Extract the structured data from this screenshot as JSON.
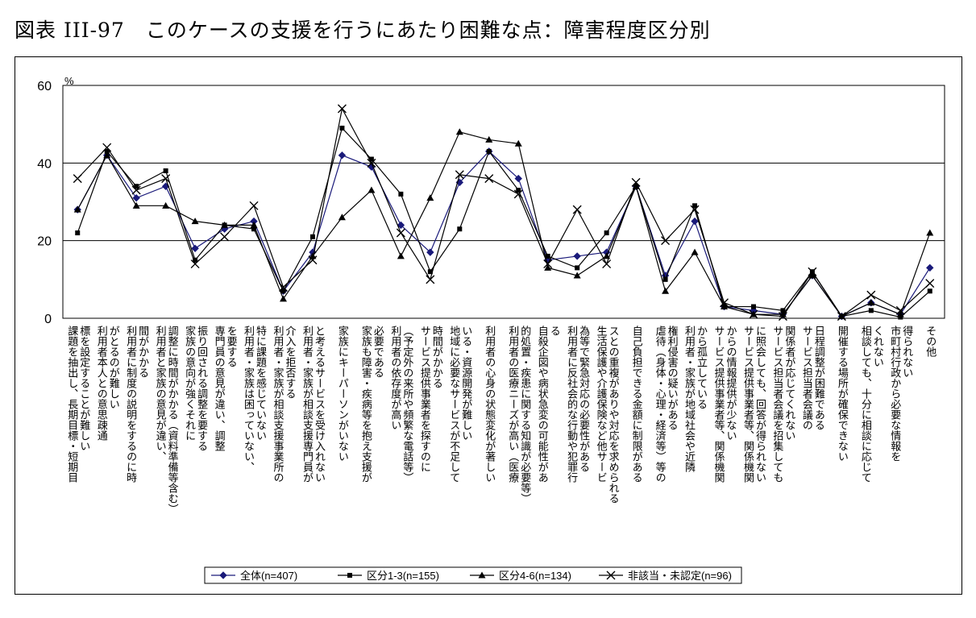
{
  "title": "図表 III-97　このケースの支援を行うにあたり困難な点：障害程度区分別",
  "chart_data": {
    "type": "line",
    "unit": "%",
    "ylim": [
      0,
      60
    ],
    "yticks": [
      0,
      20,
      40,
      60
    ],
    "grid": true,
    "legend_position": "bottom",
    "categories": [
      [
        "課題を抽出し、長期目標・短期目",
        "標を設定することが難しい"
      ],
      [
        "利用者本人との意思疎通",
        "がとるのが難しい"
      ],
      [
        "利用者に制度の説明をするのに時",
        "間がかかる"
      ],
      [
        "利用者と家族の意見が違い、",
        "調整に時間がかかる（資料準備等含む）"
      ],
      [
        "家族の意向が強くそれに",
        "振り回される調整を要する"
      ],
      [
        "専門員の意見が違い、調整",
        "を要する"
      ],
      [
        "利用者・家族は困っていない、",
        "特に課題を感じていない"
      ],
      [
        "利用者・家族が相談支援事業所の",
        "介入を拒否する"
      ],
      [
        "利用者・家族が相談支援専門員が",
        "と考えるサービスを受け入れない"
      ],
      [
        "家族にキーパーソンがいない"
      ],
      [
        "家族も障害・疾病等を抱え支援が",
        "必要である"
      ],
      [
        "利用者の依存度が高い",
        "（予定外の来所や頻繁な電話等）"
      ],
      [
        "サービス提供事業者を探すのに",
        "時間がかかる"
      ],
      [
        "地域に必要なサービスが不足して",
        "いる・資源開発が難しい"
      ],
      [
        "利用者の心身の状態変化が著しい"
      ],
      [
        "利用者の医療ニーズが高い（医療",
        "的処置・疾患に関する知識が必要等）"
      ],
      [
        "自殺企図や病状急変の可能性があ",
        "る"
      ],
      [
        "利用者に反社会的な行動や犯罪行",
        "為等で緊急対応の必要性がある"
      ],
      [
        "生活保護や介護保険など他サービ",
        "スとの重複がありや対応を求められる"
      ],
      [
        "自己負担できる金額に制限がある"
      ],
      [
        "虐待（身体・心理・経済等）等の",
        "権利侵害の疑いがある"
      ],
      [
        "利用者・家族が地域社会や近隣",
        "から孤立している"
      ],
      [
        "サービス提供事業者等、関係機関",
        "からの情報提供が少ない"
      ],
      [
        "サービス提供事業者等、関係機関",
        "に照会しても、回答が得られない"
      ],
      [
        "サービス担当者会議を招集しても",
        "関係者が応じてくれない"
      ],
      [
        "サービス担当者会議の",
        "日程調整が困難である"
      ],
      [
        "開催する場所が確保できない"
      ],
      [
        "相談しても、十分に相談に応じて",
        "くれない"
      ],
      [
        "市町村行政から必要な情報を",
        "得られない"
      ],
      [
        "その他"
      ]
    ],
    "series": [
      {
        "name": "全体(n=407)",
        "marker": "diamond",
        "color": "#1a1a7a",
        "values": [
          28,
          42,
          31,
          34,
          18,
          23,
          25,
          7,
          17,
          42,
          39,
          24,
          17,
          35,
          43,
          36,
          15,
          16,
          17,
          34,
          11,
          25,
          3,
          2,
          1,
          11,
          0.5,
          4,
          1,
          13
        ]
      },
      {
        "name": "区分1-3(n=155)",
        "marker": "square",
        "color": "#000000",
        "values": [
          22,
          43,
          34,
          38,
          15,
          24,
          23,
          7,
          21,
          49,
          41,
          32,
          12,
          23,
          43,
          33,
          16,
          13,
          22,
          34,
          10,
          29,
          3,
          3,
          2,
          12,
          0.5,
          2,
          0.3,
          7
        ]
      },
      {
        "name": "区分4-6(n=134)",
        "marker": "triangle",
        "color": "#000000",
        "values": [
          28,
          42,
          29,
          29,
          25,
          24,
          24,
          5,
          16,
          26,
          33,
          16,
          31,
          48,
          46,
          45,
          13,
          11,
          16,
          34,
          7,
          17,
          3,
          1,
          1,
          11,
          0.5,
          4,
          1,
          22
        ]
      },
      {
        "name": "非該当・未認定(n=96)",
        "marker": "x",
        "color": "#000000",
        "values": [
          36,
          44,
          33,
          36,
          14,
          21,
          29,
          8,
          15,
          54,
          40,
          22,
          10,
          37,
          36,
          32,
          14,
          28,
          14,
          35,
          20,
          28,
          4,
          1,
          0.5,
          12,
          0.5,
          6,
          2,
          9
        ]
      }
    ]
  }
}
